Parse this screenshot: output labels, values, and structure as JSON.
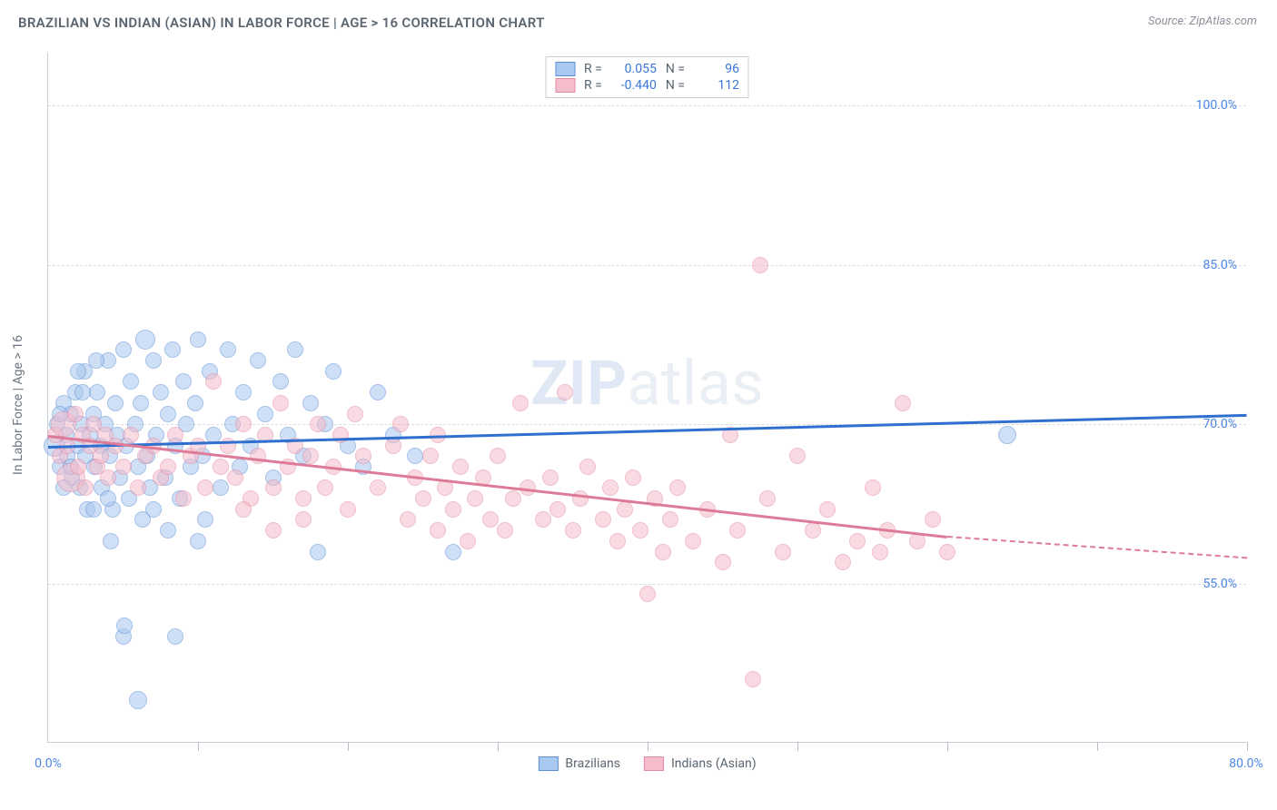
{
  "title": "BRAZILIAN VS INDIAN (ASIAN) IN LABOR FORCE | AGE > 16 CORRELATION CHART",
  "source": "Source: ZipAtlas.com",
  "y_axis_label": "In Labor Force | Age > 16",
  "watermark_bold": "ZIP",
  "watermark_rest": "atlas",
  "chart": {
    "type": "scatter",
    "xlim": [
      0,
      80
    ],
    "ylim": [
      40,
      105
    ],
    "x_axis_min_label": "0.0%",
    "x_axis_max_label": "80.0%",
    "y_ticks": [
      55,
      70,
      85,
      100
    ],
    "y_tick_labels": [
      "55.0%",
      "70.0%",
      "85.0%",
      "100.0%"
    ],
    "x_tick_positions": [
      0,
      10,
      20,
      30,
      40,
      50,
      60,
      70,
      80
    ],
    "background_color": "#ffffff",
    "grid_color": "#d9dde2",
    "axis_color": "#c8ced6",
    "tick_label_color": "#4a86e8",
    "point_radius_default": 9,
    "point_opacity": 0.55,
    "series": [
      {
        "key": "brazilians",
        "label": "Brazilians",
        "fill_color": "#a9c8f0",
        "stroke_color": "#5d8fd6",
        "trend_color": "#2f6fd0",
        "r_value": "0.055",
        "n_value": "96",
        "trend": {
          "x1": 0,
          "y1": 68,
          "x2": 80,
          "y2": 71
        },
        "points": [
          {
            "x": 0.4,
            "y": 68,
            "r": 12
          },
          {
            "x": 0.6,
            "y": 70
          },
          {
            "x": 0.8,
            "y": 66
          },
          {
            "x": 1.0,
            "y": 72
          },
          {
            "x": 1.2,
            "y": 69
          },
          {
            "x": 1.3,
            "y": 67
          },
          {
            "x": 1.5,
            "y": 71
          },
          {
            "x": 1.6,
            "y": 65
          },
          {
            "x": 1.8,
            "y": 73
          },
          {
            "x": 2.0,
            "y": 68
          },
          {
            "x": 2.1,
            "y": 64
          },
          {
            "x": 2.2,
            "y": 70
          },
          {
            "x": 2.4,
            "y": 75
          },
          {
            "x": 2.5,
            "y": 67
          },
          {
            "x": 2.6,
            "y": 62
          },
          {
            "x": 2.8,
            "y": 69
          },
          {
            "x": 3.0,
            "y": 71
          },
          {
            "x": 3.1,
            "y": 66
          },
          {
            "x": 3.3,
            "y": 73
          },
          {
            "x": 3.5,
            "y": 68
          },
          {
            "x": 3.6,
            "y": 64
          },
          {
            "x": 3.8,
            "y": 70
          },
          {
            "x": 4.0,
            "y": 76
          },
          {
            "x": 4.1,
            "y": 67
          },
          {
            "x": 4.3,
            "y": 62
          },
          {
            "x": 4.5,
            "y": 72
          },
          {
            "x": 4.6,
            "y": 69
          },
          {
            "x": 4.8,
            "y": 65
          },
          {
            "x": 5.0,
            "y": 77
          },
          {
            "x": 5.2,
            "y": 68
          },
          {
            "x": 5.4,
            "y": 63
          },
          {
            "x": 5.5,
            "y": 74
          },
          {
            "x": 5.8,
            "y": 70
          },
          {
            "x": 6.0,
            "y": 66
          },
          {
            "x": 6.2,
            "y": 72
          },
          {
            "x": 6.5,
            "y": 78,
            "r": 11
          },
          {
            "x": 6.6,
            "y": 67
          },
          {
            "x": 6.8,
            "y": 64
          },
          {
            "x": 7.0,
            "y": 76
          },
          {
            "x": 7.2,
            "y": 69
          },
          {
            "x": 7.5,
            "y": 73
          },
          {
            "x": 7.8,
            "y": 65
          },
          {
            "x": 8.0,
            "y": 71
          },
          {
            "x": 8.3,
            "y": 77
          },
          {
            "x": 8.5,
            "y": 68
          },
          {
            "x": 8.8,
            "y": 63
          },
          {
            "x": 9.0,
            "y": 74
          },
          {
            "x": 9.2,
            "y": 70
          },
          {
            "x": 9.5,
            "y": 66
          },
          {
            "x": 9.8,
            "y": 72
          },
          {
            "x": 10.0,
            "y": 78
          },
          {
            "x": 10.3,
            "y": 67
          },
          {
            "x": 10.5,
            "y": 61
          },
          {
            "x": 10.8,
            "y": 75
          },
          {
            "x": 11.0,
            "y": 69
          },
          {
            "x": 11.5,
            "y": 64
          },
          {
            "x": 12.0,
            "y": 77
          },
          {
            "x": 12.3,
            "y": 70
          },
          {
            "x": 12.8,
            "y": 66
          },
          {
            "x": 13.0,
            "y": 73
          },
          {
            "x": 13.5,
            "y": 68
          },
          {
            "x": 14.0,
            "y": 76
          },
          {
            "x": 14.5,
            "y": 71
          },
          {
            "x": 15.0,
            "y": 65
          },
          {
            "x": 15.5,
            "y": 74
          },
          {
            "x": 16.0,
            "y": 69
          },
          {
            "x": 16.5,
            "y": 77
          },
          {
            "x": 17.0,
            "y": 67
          },
          {
            "x": 17.5,
            "y": 72
          },
          {
            "x": 18.0,
            "y": 58
          },
          {
            "x": 18.5,
            "y": 70
          },
          {
            "x": 19.0,
            "y": 75
          },
          {
            "x": 20.0,
            "y": 68
          },
          {
            "x": 21.0,
            "y": 66
          },
          {
            "x": 22.0,
            "y": 73
          },
          {
            "x": 23.0,
            "y": 69
          },
          {
            "x": 24.5,
            "y": 67
          },
          {
            "x": 27.0,
            "y": 58
          },
          {
            "x": 64.0,
            "y": 69,
            "r": 10
          },
          {
            "x": 4.2,
            "y": 59
          },
          {
            "x": 5.0,
            "y": 50
          },
          {
            "x": 5.1,
            "y": 51
          },
          {
            "x": 6.0,
            "y": 44,
            "r": 10
          },
          {
            "x": 8.0,
            "y": 60
          },
          {
            "x": 8.5,
            "y": 50
          },
          {
            "x": 10.0,
            "y": 59
          },
          {
            "x": 2.0,
            "y": 75
          },
          {
            "x": 3.0,
            "y": 62
          },
          {
            "x": 1.0,
            "y": 64
          },
          {
            "x": 1.5,
            "y": 66
          },
          {
            "x": 0.8,
            "y": 71
          },
          {
            "x": 2.3,
            "y": 73
          },
          {
            "x": 3.2,
            "y": 76
          },
          {
            "x": 4.0,
            "y": 63
          },
          {
            "x": 6.3,
            "y": 61
          },
          {
            "x": 7.0,
            "y": 62
          }
        ]
      },
      {
        "key": "indians",
        "label": "Indians (Asian)",
        "fill_color": "#f5bccb",
        "stroke_color": "#e38aa2",
        "trend_color": "#de7b99",
        "r_value": "-0.440",
        "n_value": "112",
        "trend": {
          "x1": 0,
          "y1": 69,
          "x2": 60,
          "y2": 59.5
        },
        "trend_dash": {
          "x1": 60,
          "y1": 59.5,
          "x2": 80,
          "y2": 57.5
        },
        "points": [
          {
            "x": 0.5,
            "y": 69
          },
          {
            "x": 0.8,
            "y": 67
          },
          {
            "x": 1.0,
            "y": 70,
            "r": 14
          },
          {
            "x": 1.3,
            "y": 68
          },
          {
            "x": 1.5,
            "y": 65,
            "r": 16
          },
          {
            "x": 1.8,
            "y": 71
          },
          {
            "x": 2.0,
            "y": 66
          },
          {
            "x": 2.3,
            "y": 69
          },
          {
            "x": 2.5,
            "y": 64
          },
          {
            "x": 2.8,
            "y": 68
          },
          {
            "x": 3.0,
            "y": 70
          },
          {
            "x": 3.3,
            "y": 66
          },
          {
            "x": 3.5,
            "y": 67
          },
          {
            "x": 3.8,
            "y": 69
          },
          {
            "x": 4.0,
            "y": 65
          },
          {
            "x": 4.5,
            "y": 68
          },
          {
            "x": 5.0,
            "y": 66
          },
          {
            "x": 5.5,
            "y": 69
          },
          {
            "x": 6.0,
            "y": 64
          },
          {
            "x": 6.5,
            "y": 67
          },
          {
            "x": 7.0,
            "y": 68
          },
          {
            "x": 7.5,
            "y": 65
          },
          {
            "x": 8.0,
            "y": 66
          },
          {
            "x": 8.5,
            "y": 69
          },
          {
            "x": 9.0,
            "y": 63
          },
          {
            "x": 9.5,
            "y": 67
          },
          {
            "x": 10.0,
            "y": 68
          },
          {
            "x": 10.5,
            "y": 64
          },
          {
            "x": 11.0,
            "y": 74
          },
          {
            "x": 11.5,
            "y": 66
          },
          {
            "x": 12.0,
            "y": 68
          },
          {
            "x": 12.5,
            "y": 65
          },
          {
            "x": 13.0,
            "y": 70
          },
          {
            "x": 13.5,
            "y": 63
          },
          {
            "x": 14.0,
            "y": 67
          },
          {
            "x": 14.5,
            "y": 69
          },
          {
            "x": 15.0,
            "y": 64
          },
          {
            "x": 15.5,
            "y": 72
          },
          {
            "x": 16.0,
            "y": 66
          },
          {
            "x": 16.5,
            "y": 68
          },
          {
            "x": 17.0,
            "y": 63
          },
          {
            "x": 17.5,
            "y": 67
          },
          {
            "x": 18.0,
            "y": 70
          },
          {
            "x": 18.5,
            "y": 64
          },
          {
            "x": 19.0,
            "y": 66
          },
          {
            "x": 19.5,
            "y": 69
          },
          {
            "x": 20.0,
            "y": 62
          },
          {
            "x": 21.0,
            "y": 67
          },
          {
            "x": 22.0,
            "y": 64
          },
          {
            "x": 23.0,
            "y": 68
          },
          {
            "x": 24.0,
            "y": 61
          },
          {
            "x": 24.5,
            "y": 65
          },
          {
            "x": 25.0,
            "y": 63
          },
          {
            "x": 25.5,
            "y": 67
          },
          {
            "x": 26.0,
            "y": 60
          },
          {
            "x": 26.5,
            "y": 64
          },
          {
            "x": 27.0,
            "y": 62
          },
          {
            "x": 27.5,
            "y": 66
          },
          {
            "x": 28.0,
            "y": 59
          },
          {
            "x": 28.5,
            "y": 63
          },
          {
            "x": 29.0,
            "y": 65
          },
          {
            "x": 29.5,
            "y": 61
          },
          {
            "x": 30.0,
            "y": 67
          },
          {
            "x": 30.5,
            "y": 60
          },
          {
            "x": 31.0,
            "y": 63
          },
          {
            "x": 31.5,
            "y": 72
          },
          {
            "x": 32.0,
            "y": 64
          },
          {
            "x": 33.0,
            "y": 61
          },
          {
            "x": 33.5,
            "y": 65
          },
          {
            "x": 34.0,
            "y": 62
          },
          {
            "x": 34.5,
            "y": 73
          },
          {
            "x": 35.0,
            "y": 60
          },
          {
            "x": 35.5,
            "y": 63
          },
          {
            "x": 36.0,
            "y": 66
          },
          {
            "x": 37.0,
            "y": 61
          },
          {
            "x": 37.5,
            "y": 64
          },
          {
            "x": 38.0,
            "y": 59
          },
          {
            "x": 38.5,
            "y": 62
          },
          {
            "x": 39.0,
            "y": 65
          },
          {
            "x": 39.5,
            "y": 60
          },
          {
            "x": 40.0,
            "y": 54
          },
          {
            "x": 40.5,
            "y": 63
          },
          {
            "x": 41.0,
            "y": 58
          },
          {
            "x": 41.5,
            "y": 61
          },
          {
            "x": 42.0,
            "y": 64
          },
          {
            "x": 43.0,
            "y": 59
          },
          {
            "x": 44.0,
            "y": 62
          },
          {
            "x": 45.0,
            "y": 57
          },
          {
            "x": 45.5,
            "y": 69
          },
          {
            "x": 46.0,
            "y": 60
          },
          {
            "x": 47.0,
            "y": 46
          },
          {
            "x": 47.5,
            "y": 85
          },
          {
            "x": 48.0,
            "y": 63
          },
          {
            "x": 49.0,
            "y": 58
          },
          {
            "x": 50.0,
            "y": 67
          },
          {
            "x": 51.0,
            "y": 60
          },
          {
            "x": 52.0,
            "y": 62
          },
          {
            "x": 53.0,
            "y": 57
          },
          {
            "x": 54.0,
            "y": 59
          },
          {
            "x": 55.0,
            "y": 64
          },
          {
            "x": 55.5,
            "y": 58
          },
          {
            "x": 56.0,
            "y": 60
          },
          {
            "x": 57.0,
            "y": 72
          },
          {
            "x": 58.0,
            "y": 59
          },
          {
            "x": 59.0,
            "y": 61
          },
          {
            "x": 60.0,
            "y": 58
          },
          {
            "x": 20.5,
            "y": 71
          },
          {
            "x": 23.5,
            "y": 70
          },
          {
            "x": 26.0,
            "y": 69
          },
          {
            "x": 13.0,
            "y": 62
          },
          {
            "x": 15.0,
            "y": 60
          },
          {
            "x": 17.0,
            "y": 61
          }
        ]
      }
    ]
  },
  "stats_box": {
    "r_label": "R =",
    "n_label": "N ="
  },
  "legend": {
    "series1": "Brazilians",
    "series2": "Indians (Asian)"
  }
}
